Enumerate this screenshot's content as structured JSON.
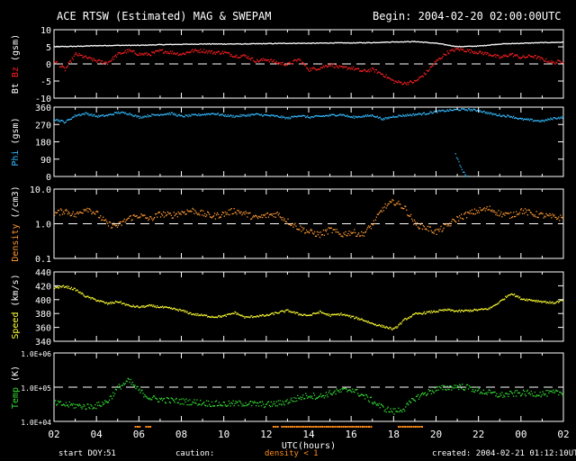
{
  "header": {
    "title": "ACE RTSW (Estimated) MAG & SWEPAM",
    "begin": "Begin: 2004-02-20 02:00:00UTC"
  },
  "footer": {
    "start_doy_label": "start DOY:",
    "start_doy_value": "51",
    "caution_label": "caution:",
    "density_note": "density < 1",
    "created": "created: 2004-02-21 01:12:10UTC"
  },
  "colors": {
    "background": "#000000",
    "frame": "#ffffff",
    "bt": "#ffffff",
    "bz": "#ff2020",
    "phi": "#33bbff",
    "density": "#ff9933",
    "speed": "#ffff33",
    "temp": "#33dd33",
    "caution": "#ff8c1a"
  },
  "chart_data": {
    "type": "scatter",
    "xlabel": "UTC(hours)",
    "x_ticks": [
      "02",
      "04",
      "06",
      "08",
      "10",
      "12",
      "14",
      "16",
      "18",
      "20",
      "22",
      "00",
      "02"
    ],
    "xlim": [
      0,
      24
    ],
    "x_unit": "hours since 2004-02-20 02:00 UTC",
    "caution_intervals_hours": [
      [
        3.8,
        4.1
      ],
      [
        4.3,
        4.5
      ],
      [
        10.3,
        10.6
      ],
      [
        10.7,
        11.2
      ],
      [
        11.3,
        14.9
      ],
      [
        16.2,
        17.4
      ]
    ],
    "panels": [
      {
        "id": "mag",
        "ylabel": [
          {
            "text": "Bt",
            "color": "#ffffff"
          },
          {
            "text": "Bz",
            "color": "#ff2020"
          },
          {
            "text": "(gsm)",
            "color": "#ffffff"
          }
        ],
        "ylim": [
          -10,
          10
        ],
        "yscale": "linear",
        "ticks": [
          "10",
          "5",
          "0",
          "-5",
          "-10"
        ],
        "tick_values": [
          10,
          5,
          0,
          -5,
          -10
        ],
        "dashed_refs": [
          0
        ],
        "series": [
          {
            "name": "Bt",
            "color": "#ffffff",
            "x": [
              0,
              1,
              2,
              3,
              4,
              5,
              6,
              7,
              8,
              9,
              10,
              11,
              12,
              13,
              14,
              15,
              16,
              17,
              18,
              19,
              20,
              21,
              22,
              23,
              24
            ],
            "y": [
              5.2,
              5.3,
              5.5,
              5.6,
              5.6,
              5.8,
              5.9,
              6.0,
              6.0,
              6.0,
              6.1,
              6.2,
              6.2,
              6.3,
              6.3,
              6.4,
              6.6,
              6.7,
              6.2,
              5.2,
              5.4,
              6.0,
              6.2,
              6.4,
              6.5
            ]
          },
          {
            "name": "Bz",
            "color": "#ff2020",
            "x": [
              0,
              0.5,
              1,
              1.5,
              2,
              2.5,
              3,
              3.5,
              4,
              4.5,
              5,
              5.5,
              6,
              6.5,
              7,
              7.5,
              8,
              8.5,
              9,
              9.5,
              10,
              10.5,
              11,
              11.5,
              12,
              12.5,
              13,
              13.5,
              14,
              14.5,
              15,
              15.5,
              16,
              16.5,
              17,
              17.5,
              18,
              18.5,
              19,
              19.5,
              20,
              20.5,
              21,
              21.5,
              22,
              22.5,
              23,
              23.5,
              24
            ],
            "y": [
              1.0,
              -1.5,
              3.0,
              2.0,
              1.0,
              0.5,
              3.0,
              4.0,
              3.0,
              3.0,
              4.0,
              3.5,
              3.0,
              4.0,
              4.0,
              3.5,
              3.5,
              2.5,
              2.5,
              1.0,
              1.5,
              0.5,
              0.0,
              1.5,
              -1.5,
              -1.0,
              0.0,
              -1.0,
              -1.0,
              -2.0,
              -1.5,
              -3.0,
              -5.0,
              -5.5,
              -5.0,
              -2.5,
              1.0,
              3.5,
              4.5,
              4.0,
              3.5,
              3.0,
              2.0,
              3.0,
              2.0,
              2.5,
              1.5,
              0.5,
              1.0
            ]
          }
        ]
      },
      {
        "id": "phi",
        "ylabel": [
          {
            "text": "Phi",
            "color": "#33bbff"
          },
          {
            "text": "(gsm)",
            "color": "#ffffff"
          }
        ],
        "ylim": [
          0,
          360
        ],
        "yscale": "linear",
        "ticks": [
          "360",
          "270",
          "180",
          "90",
          "0"
        ],
        "tick_values": [
          360,
          270,
          180,
          90,
          0
        ],
        "dashed_refs": [],
        "series": [
          {
            "name": "Phi",
            "color": "#33bbff",
            "x": [
              0,
              0.5,
              1,
              1.5,
              2,
              2.5,
              3,
              3.5,
              4,
              4.5,
              5,
              5.5,
              6,
              6.5,
              7,
              7.5,
              8,
              8.5,
              9,
              9.5,
              10,
              10.5,
              11,
              11.5,
              12,
              12.5,
              13,
              13.5,
              14,
              14.5,
              15,
              15.5,
              16,
              16.5,
              17,
              17.5,
              18,
              18.5,
              19,
              19.5,
              20,
              20.5,
              21,
              21.5,
              22,
              22.5,
              23,
              23.5,
              24
            ],
            "y": [
              300,
              285,
              320,
              330,
              315,
              320,
              335,
              330,
              310,
              320,
              325,
              330,
              315,
              320,
              325,
              330,
              320,
              315,
              320,
              325,
              320,
              315,
              305,
              320,
              310,
              315,
              320,
              325,
              310,
              315,
              320,
              300,
              315,
              320,
              325,
              330,
              340,
              345,
              350,
              350,
              345,
              330,
              320,
              315,
              300,
              295,
              290,
              305,
              310
            ]
          },
          {
            "name": "Phi-dip",
            "color": "#33bbff",
            "x": [
              18.9,
              19.0,
              19.1,
              19.2,
              19.3,
              19.4,
              19.5
            ],
            "y": [
              120,
              90,
              60,
              40,
              20,
              5,
              0
            ]
          }
        ]
      },
      {
        "id": "density",
        "ylabel": [
          {
            "text": "Density",
            "color": "#ff9933"
          },
          {
            "text": "(/cm3)",
            "color": "#ffffff"
          }
        ],
        "ylim": [
          0.1,
          10
        ],
        "yscale": "log",
        "ticks": [
          "10.0",
          "1.0",
          "0.1"
        ],
        "tick_values": [
          10,
          1,
          0.1
        ],
        "dashed_refs": [
          1.0
        ],
        "series": [
          {
            "name": "Density",
            "color": "#ff9933",
            "x": [
              0,
              0.5,
              1,
              1.5,
              2,
              2.5,
              3,
              3.5,
              4,
              4.5,
              5,
              5.5,
              6,
              6.5,
              7,
              7.5,
              8,
              8.5,
              9,
              9.5,
              10,
              10.5,
              11,
              11.5,
              12,
              12.5,
              13,
              13.5,
              14,
              14.5,
              15,
              15.5,
              16,
              16.5,
              17,
              17.5,
              18,
              18.5,
              19,
              19.5,
              20,
              20.5,
              21,
              21.5,
              22,
              22.5,
              23,
              23.5,
              24
            ],
            "y": [
              2.0,
              2.5,
              1.8,
              3.0,
              2.0,
              1.0,
              0.9,
              1.5,
              1.8,
              1.4,
              2.0,
              1.8,
              2.2,
              2.5,
              2.0,
              1.7,
              2.0,
              2.5,
              2.0,
              1.5,
              1.8,
              2.0,
              1.2,
              0.8,
              0.6,
              0.5,
              0.7,
              0.5,
              0.6,
              0.5,
              1.0,
              3.0,
              4.5,
              3.0,
              1.0,
              0.8,
              0.6,
              0.9,
              1.5,
              2.0,
              2.5,
              2.8,
              2.0,
              1.8,
              2.5,
              2.0,
              1.8,
              1.6,
              1.5
            ]
          }
        ]
      },
      {
        "id": "speed",
        "ylabel": [
          {
            "text": "Speed",
            "color": "#ffff33"
          },
          {
            "text": "(km/s)",
            "color": "#ffffff"
          }
        ],
        "ylim": [
          340,
          440
        ],
        "yscale": "linear",
        "ticks": [
          "440",
          "420",
          "400",
          "380",
          "360",
          "340"
        ],
        "tick_values": [
          440,
          420,
          400,
          380,
          360,
          340
        ],
        "dashed_refs": [],
        "series": [
          {
            "name": "Speed",
            "color": "#ffff33",
            "x": [
              0,
              0.5,
              1,
              1.5,
              2,
              2.5,
              3,
              3.5,
              4,
              4.5,
              5,
              5.5,
              6,
              6.5,
              7,
              7.5,
              8,
              8.5,
              9,
              9.5,
              10,
              10.5,
              11,
              11.5,
              12,
              12.5,
              13,
              13.5,
              14,
              14.5,
              15,
              15.5,
              16,
              16.5,
              17,
              17.5,
              18,
              18.5,
              19,
              19.5,
              20,
              20.5,
              21,
              21.5,
              22,
              22.5,
              23,
              23.5,
              24
            ],
            "y": [
              418,
              420,
              415,
              405,
              400,
              395,
              398,
              392,
              390,
              392,
              390,
              388,
              385,
              380,
              378,
              376,
              377,
              382,
              375,
              377,
              378,
              382,
              385,
              380,
              378,
              383,
              378,
              380,
              376,
              372,
              366,
              362,
              358,
              372,
              380,
              382,
              384,
              386,
              384,
              385,
              386,
              388,
              398,
              410,
              402,
              400,
              398,
              396,
              400
            ]
          }
        ]
      },
      {
        "id": "temp",
        "ylabel": [
          {
            "text": "Temp",
            "color": "#33dd33"
          },
          {
            "text": "(K)",
            "color": "#ffffff"
          }
        ],
        "ylim": [
          10000,
          1000000
        ],
        "yscale": "log",
        "ticks": [
          "1.0E+06",
          "1.0E+05",
          "1.0E+04"
        ],
        "tick_values": [
          1000000,
          100000,
          10000
        ],
        "dashed_refs": [
          100000
        ],
        "series": [
          {
            "name": "Temp",
            "color": "#33dd33",
            "x": [
              0,
              0.5,
              1,
              1.5,
              2,
              2.5,
              3,
              3.5,
              4,
              4.5,
              5,
              5.5,
              6,
              6.5,
              7,
              7.5,
              8,
              8.5,
              9,
              9.5,
              10,
              10.5,
              11,
              11.5,
              12,
              12.5,
              13,
              13.5,
              14,
              14.5,
              15,
              15.5,
              16,
              16.5,
              17,
              17.5,
              18,
              18.5,
              19,
              19.5,
              20,
              20.5,
              21,
              21.5,
              22,
              22.5,
              23,
              23.5,
              24
            ],
            "y": [
              35000,
              32000,
              30000,
              28000,
              30000,
              40000,
              100000,
              160000,
              80000,
              50000,
              45000,
              42000,
              40000,
              38000,
              36000,
              34000,
              33000,
              34000,
              35000,
              33000,
              32000,
              34000,
              40000,
              50000,
              60000,
              55000,
              70000,
              80000,
              90000,
              60000,
              40000,
              25000,
              20000,
              25000,
              50000,
              70000,
              90000,
              100000,
              110000,
              100000,
              80000,
              70000,
              60000,
              65000,
              70000,
              68000,
              66000,
              70000,
              72000
            ]
          }
        ]
      }
    ]
  }
}
